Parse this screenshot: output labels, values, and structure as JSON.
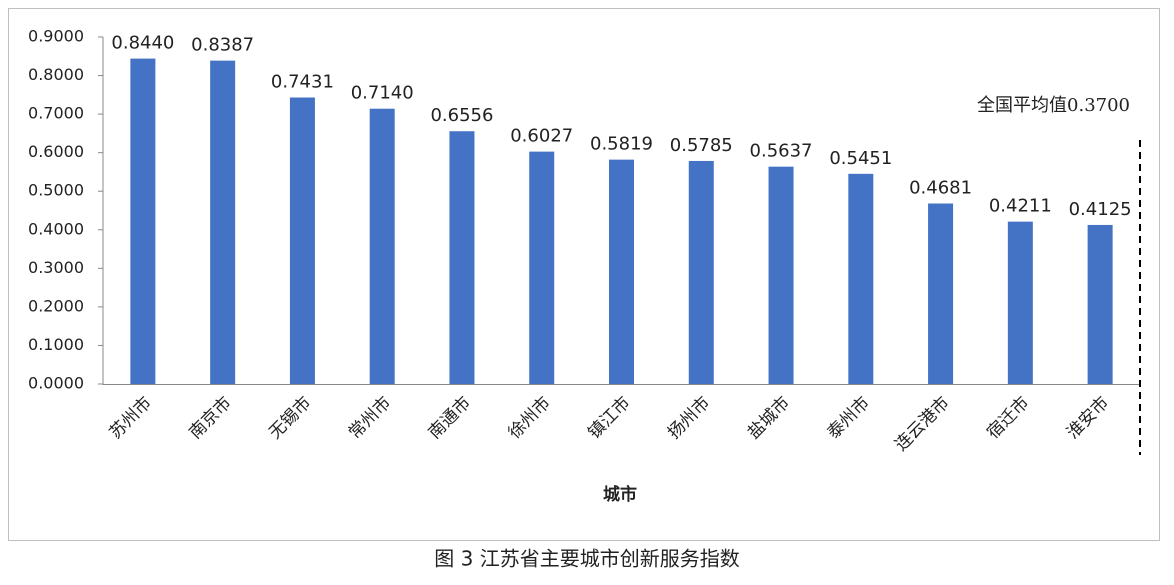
{
  "chart_data": {
    "type": "bar",
    "categories": [
      "苏州市",
      "南京市",
      "无锡市",
      "常州市",
      "南通市",
      "徐州市",
      "镇江市",
      "扬州市",
      "盐城市",
      "泰州市",
      "连云港市",
      "宿迁市",
      "淮安市"
    ],
    "values": [
      0.844,
      0.8387,
      0.7431,
      0.714,
      0.6556,
      0.6027,
      0.5819,
      0.5785,
      0.5637,
      0.5451,
      0.4681,
      0.4211,
      0.4125
    ],
    "value_labels": [
      "0.8440",
      "0.8387",
      "0.7431",
      "0.7140",
      "0.6556",
      "0.6027",
      "0.5819",
      "0.5785",
      "0.5637",
      "0.5451",
      "0.4681",
      "0.4211",
      "0.4125"
    ],
    "color": "#4472c4",
    "ylim": [
      0,
      0.9
    ],
    "yticks": [
      {
        "value": 0,
        "label": "0.0000"
      },
      {
        "value": 0.1,
        "label": "0.1000"
      },
      {
        "value": 0.2,
        "label": "0.2000"
      },
      {
        "value": 0.3,
        "label": "0.3000"
      },
      {
        "value": 0.4,
        "label": "0.4000"
      },
      {
        "value": 0.5,
        "label": "0.5000"
      },
      {
        "value": 0.6,
        "label": "0.6000"
      },
      {
        "value": 0.7,
        "label": "0.7000"
      },
      {
        "value": 0.8,
        "label": "0.8000"
      },
      {
        "value": 0.9,
        "label": "0.9000"
      }
    ],
    "x_label": "城市",
    "annotation": "全国平均值0.3700",
    "grid": false
  },
  "caption": "图 3 江苏省主要城市创新服务指数"
}
